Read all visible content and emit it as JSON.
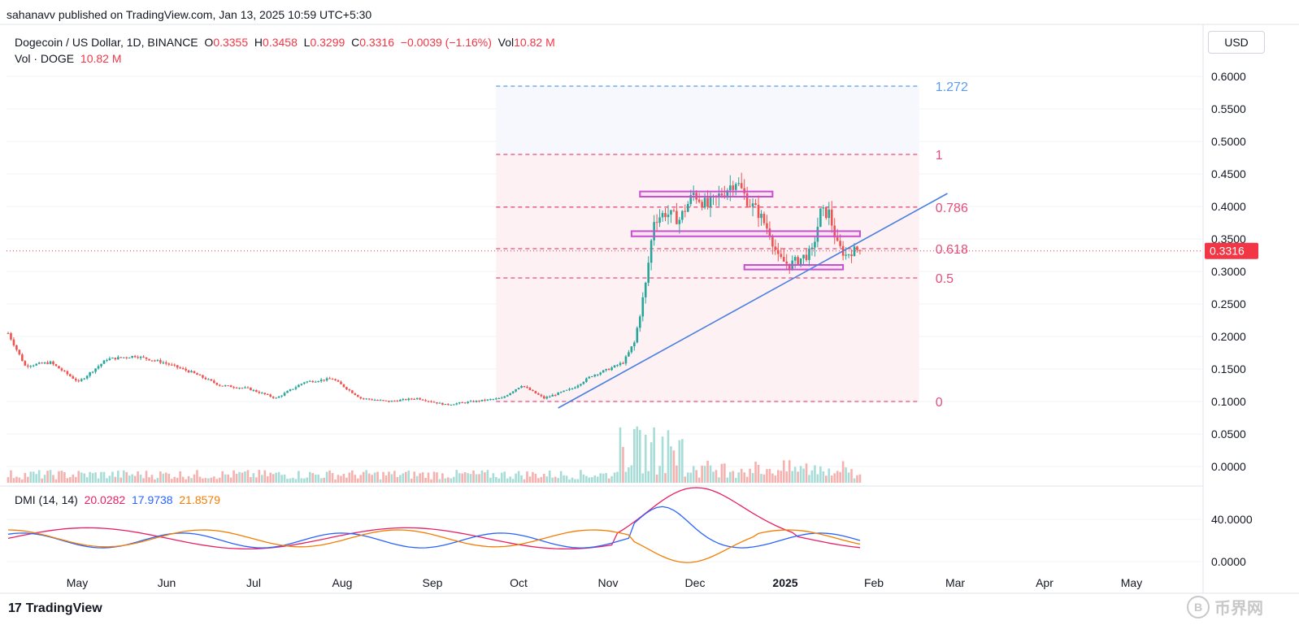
{
  "header": {
    "publisher_line": "sahanavv published on TradingView.com, Jan 13, 2025 10:59 UTC+5:30",
    "symbol": "Dogecoin / US Dollar, 1D, BINANCE",
    "o_label": "O",
    "o_value": "0.3355",
    "h_label": "H",
    "h_value": "0.3458",
    "l_label": "L",
    "l_value": "0.3299",
    "c_label": "C",
    "c_value": "0.3316",
    "change": "−0.0039 (−1.16%)",
    "vol_label": "Vol",
    "vol_value": "10.82 M",
    "vol_series_label": "Vol · DOGE",
    "vol_series_value": "10.82 M"
  },
  "currency_button": "USD",
  "dmi": {
    "label": "DMI (14, 14)",
    "adx": "20.0282",
    "plus_di": "17.9738",
    "minus_di": "21.8579"
  },
  "footer": {
    "brand": "TradingView",
    "logo": "17"
  },
  "watermark": {
    "text": "币界网",
    "badge": "B"
  },
  "colors": {
    "up": "#26a69a",
    "down": "#ef5350",
    "fib": "#e84d7a",
    "fib_ext": "#5b9cf0",
    "trend": "#4a7fe0",
    "box": "#c84fd0",
    "adx": "#e91e63",
    "plus_di": "#2962ff",
    "minus_di": "#f57c00"
  },
  "chart_data": {
    "type": "candlestick",
    "title": "Dogecoin / US Dollar, 1D, BINANCE",
    "price_axis": {
      "ticks": [
        "0.6000",
        "0.5500",
        "0.5000",
        "0.4500",
        "0.4000",
        "0.3500",
        "0.3000",
        "0.2500",
        "0.2000",
        "0.1500",
        "0.1000",
        "0.0500",
        "0.0000"
      ],
      "ylim": [
        0.0,
        0.6
      ],
      "last_price": "0.3316"
    },
    "dmi_axis": {
      "ticks": [
        "40.0000",
        "0.0000"
      ]
    },
    "time_axis": [
      "May",
      "Jun",
      "Jul",
      "Aug",
      "Sep",
      "Oct",
      "Nov",
      "Dec",
      "2025",
      "Feb",
      "Mar",
      "Apr",
      "May"
    ],
    "fib_levels": [
      {
        "label": "1.272",
        "price": 0.585
      },
      {
        "label": "1",
        "price": 0.48
      },
      {
        "label": "0.786",
        "price": 0.399
      },
      {
        "label": "0.618",
        "price": 0.335
      },
      {
        "label": "0.5",
        "price": 0.29
      },
      {
        "label": "0",
        "price": 0.1
      }
    ],
    "boxes": [
      {
        "from_day": 224,
        "to_day": 271,
        "low": 0.415,
        "high": 0.423
      },
      {
        "from_day": 221,
        "to_day": 302,
        "low": 0.354,
        "high": 0.362
      },
      {
        "from_day": 261,
        "to_day": 296,
        "low": 0.303,
        "high": 0.31
      }
    ],
    "trendline": {
      "from_day": 195,
      "from_price": 0.09,
      "to_day": 333,
      "to_price": 0.42
    },
    "anchors": [
      [
        0,
        0.205
      ],
      [
        6,
        0.155
      ],
      [
        15,
        0.16
      ],
      [
        25,
        0.13
      ],
      [
        35,
        0.165
      ],
      [
        45,
        0.17
      ],
      [
        55,
        0.16
      ],
      [
        65,
        0.145
      ],
      [
        75,
        0.125
      ],
      [
        85,
        0.12
      ],
      [
        95,
        0.105
      ],
      [
        105,
        0.13
      ],
      [
        115,
        0.135
      ],
      [
        125,
        0.105
      ],
      [
        135,
        0.1
      ],
      [
        145,
        0.105
      ],
      [
        155,
        0.095
      ],
      [
        165,
        0.1
      ],
      [
        175,
        0.105
      ],
      [
        182,
        0.125
      ],
      [
        190,
        0.105
      ],
      [
        200,
        0.12
      ],
      [
        207,
        0.14
      ],
      [
        213,
        0.15
      ],
      [
        218,
        0.16
      ],
      [
        222,
        0.19
      ],
      [
        226,
        0.28
      ],
      [
        229,
        0.38
      ],
      [
        233,
        0.39
      ],
      [
        238,
        0.38
      ],
      [
        243,
        0.42
      ],
      [
        248,
        0.4
      ],
      [
        253,
        0.42
      ],
      [
        258,
        0.44
      ],
      [
        262,
        0.41
      ],
      [
        266,
        0.39
      ],
      [
        270,
        0.36
      ],
      [
        273,
        0.32
      ],
      [
        277,
        0.31
      ],
      [
        281,
        0.32
      ],
      [
        285,
        0.33
      ],
      [
        288,
        0.39
      ],
      [
        291,
        0.39
      ],
      [
        294,
        0.34
      ],
      [
        297,
        0.325
      ],
      [
        300,
        0.335
      ],
      [
        302,
        0.3316
      ]
    ]
  }
}
